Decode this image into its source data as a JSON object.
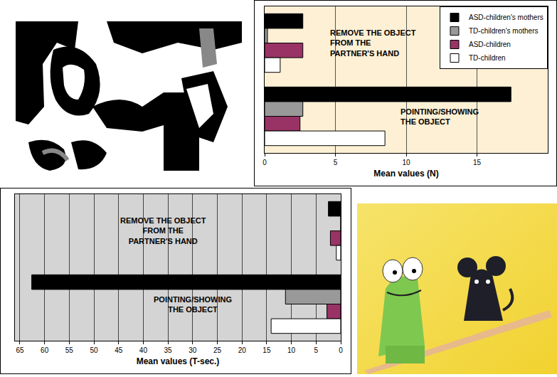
{
  "chart_data": [
    {
      "type": "bar",
      "orientation": "horizontal",
      "categories": [
        "REMOVE THE OBJECT FROM THE PARTNER'S HAND",
        "POINTING/SHOWING THE OBJECT"
      ],
      "series": [
        {
          "name": "ASD-children's mothers",
          "color": "#000000",
          "values": [
            2.7,
            17.4
          ]
        },
        {
          "name": "TD-children's mothers",
          "color": "#999999",
          "values": [
            0.2,
            2.7
          ]
        },
        {
          "name": "ASD-children",
          "color": "#993366",
          "values": [
            2.7,
            2.5
          ]
        },
        {
          "name": "TD-children",
          "color": "#ffffff",
          "values": [
            1.1,
            8.5
          ]
        }
      ],
      "xlabel": "Mean values (N)",
      "xlim": [
        0,
        20
      ],
      "xticks": [
        0,
        5,
        10,
        15
      ],
      "grid": true,
      "legend": "top right",
      "tick_labels": "x"
    },
    {
      "type": "bar",
      "orientation": "horizontal",
      "categories": [
        "REMOVE THE OBJECT FROM THE PARTNER'S HAND",
        "POINTING/SHOWING THE OBJECT"
      ],
      "series": [
        {
          "color": "#000000",
          "values": [
            2.5,
            62.6
          ]
        },
        {
          "color": "#999999",
          "values": [
            0,
            11.2
          ]
        },
        {
          "color": "#993366",
          "values": [
            2.1,
            2.8
          ]
        },
        {
          "color": "#ffffff",
          "values": [
            0.9,
            14.1
          ]
        }
      ],
      "xlabel": "Mean values (T-sec.)",
      "xlim": [
        66,
        0
      ],
      "xticks": [
        65,
        60,
        55,
        50,
        45,
        40,
        35,
        30,
        25,
        20,
        15,
        10,
        5,
        0
      ],
      "grid": true,
      "tick_labels": "x"
    }
  ]
}
